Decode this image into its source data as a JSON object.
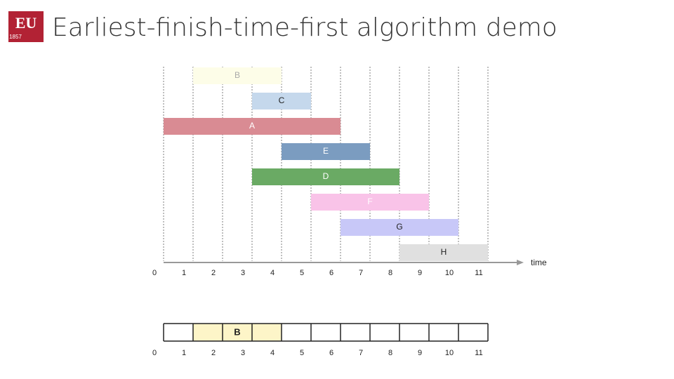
{
  "header": {
    "title": "Earliest-finish-time-first algorithm demo",
    "logo": {
      "text": "EU",
      "year": "1857"
    }
  },
  "jobs": [
    {
      "label": "B",
      "start": 1,
      "end": 4,
      "color": "#fdfde8",
      "text_color": "#aaaaaa"
    },
    {
      "label": "C",
      "start": 3,
      "end": 5,
      "color": "#c5d8ec",
      "text_color": "#222222"
    },
    {
      "label": "A",
      "start": 0,
      "end": 6,
      "color": "#d98b93",
      "text_color": "#ffffff"
    },
    {
      "label": "E",
      "start": 4,
      "end": 7,
      "color": "#7b9cc0",
      "text_color": "#ffffff"
    },
    {
      "label": "D",
      "start": 3,
      "end": 8,
      "color": "#6aaa64",
      "text_color": "#ffffff"
    },
    {
      "label": "F",
      "start": 5,
      "end": 9,
      "color": "#f9c3e8",
      "text_color": "#ffffff"
    },
    {
      "label": "G",
      "start": 6,
      "end": 10,
      "color": "#c8c8f8",
      "text_color": "#222222"
    },
    {
      "label": "H",
      "start": 8,
      "end": 11,
      "color": "#e0e0e0",
      "text_color": "#222222"
    }
  ],
  "axis": {
    "ticks": [
      0,
      1,
      2,
      3,
      4,
      5,
      6,
      7,
      8,
      9,
      10,
      11
    ],
    "label": "time"
  },
  "schedule": {
    "ticks": [
      0,
      1,
      2,
      3,
      4,
      5,
      6,
      7,
      8,
      9,
      10,
      11
    ],
    "selected": [
      {
        "label": "B",
        "start": 1,
        "end": 4,
        "color": "#fdf5c8"
      }
    ]
  }
}
